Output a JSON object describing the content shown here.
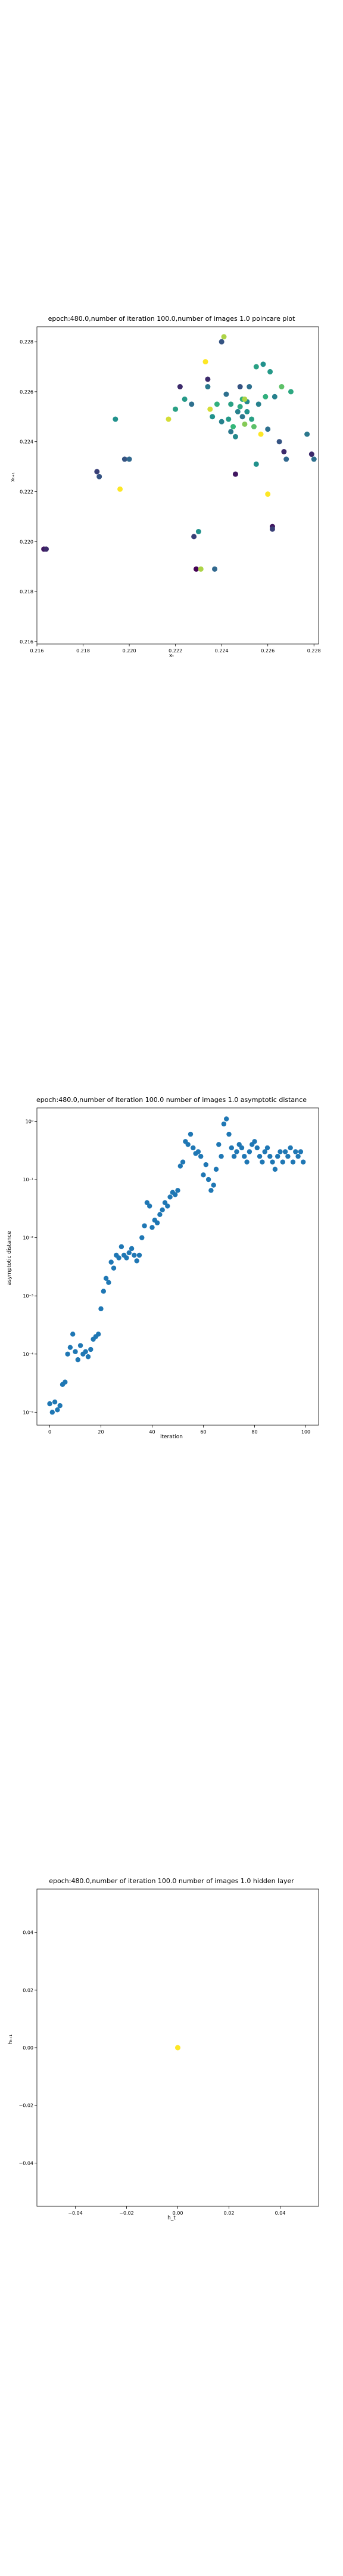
{
  "chart_data": [
    {
      "type": "scatter",
      "title": "epoch:480.0,number of iteration 100.0,number of images 1.0 poincare plot",
      "xlabel": "xₜ",
      "ylabel": "xₜ₊₁",
      "xlim": [
        0.216,
        0.2282
      ],
      "ylim": [
        0.2159,
        0.2286
      ],
      "xticks": [
        0.216,
        0.218,
        0.22,
        0.222,
        0.224,
        0.226,
        0.228
      ],
      "xtick_labels": [
        "0.216",
        "0.218",
        "0.220",
        "0.222",
        "0.224",
        "0.226",
        "0.228"
      ],
      "yticks": [
        0.216,
        0.218,
        0.22,
        0.222,
        0.224,
        0.226,
        0.228
      ],
      "ytick_labels": [
        "0.216",
        "0.218",
        "0.220",
        "0.222",
        "0.224",
        "0.226",
        "0.228"
      ],
      "grid": false,
      "colormap": [
        "#440154",
        "#31688e",
        "#21918c",
        "#35b779",
        "#fde725"
      ],
      "points": [
        [
          0.2163,
          0.2197,
          0.05
        ],
        [
          0.2164,
          0.2197,
          0.1
        ],
        [
          0.2186,
          0.2228,
          0.15
        ],
        [
          0.2187,
          0.2226,
          0.2
        ],
        [
          0.2194,
          0.2249,
          0.5
        ],
        [
          0.2196,
          0.2221,
          1.0
        ],
        [
          0.2198,
          0.2233,
          0.2
        ],
        [
          0.22,
          0.2233,
          0.25
        ],
        [
          0.2217,
          0.2249,
          0.95
        ],
        [
          0.222,
          0.2253,
          0.6
        ],
        [
          0.2222,
          0.2262,
          0.1
        ],
        [
          0.2224,
          0.2257,
          0.55
        ],
        [
          0.2227,
          0.2255,
          0.3
        ],
        [
          0.2228,
          0.2202,
          0.15
        ],
        [
          0.2229,
          0.2189,
          0.0
        ],
        [
          0.223,
          0.2204,
          0.5
        ],
        [
          0.2231,
          0.2189,
          0.9
        ],
        [
          0.2233,
          0.2272,
          1.0
        ],
        [
          0.2234,
          0.2265,
          0.1
        ],
        [
          0.2234,
          0.2262,
          0.35
        ],
        [
          0.2235,
          0.2253,
          0.95
        ],
        [
          0.2236,
          0.225,
          0.5
        ],
        [
          0.2237,
          0.2189,
          0.25
        ],
        [
          0.2238,
          0.2255,
          0.7
        ],
        [
          0.224,
          0.2248,
          0.4
        ],
        [
          0.224,
          0.228,
          0.2
        ],
        [
          0.2241,
          0.2282,
          0.9
        ],
        [
          0.2242,
          0.2259,
          0.3
        ],
        [
          0.2243,
          0.2249,
          0.55
        ],
        [
          0.2244,
          0.2244,
          0.35
        ],
        [
          0.2244,
          0.2255,
          0.6
        ],
        [
          0.2245,
          0.2246,
          0.75
        ],
        [
          0.2246,
          0.2242,
          0.45
        ],
        [
          0.2247,
          0.2252,
          0.4
        ],
        [
          0.2248,
          0.2254,
          0.65
        ],
        [
          0.2249,
          0.225,
          0.35
        ],
        [
          0.2249,
          0.2257,
          0.7
        ],
        [
          0.225,
          0.2247,
          0.85
        ],
        [
          0.2251,
          0.2256,
          0.45
        ],
        [
          0.2251,
          0.2252,
          0.5
        ],
        [
          0.2252,
          0.2262,
          0.3
        ],
        [
          0.2253,
          0.2249,
          0.6
        ],
        [
          0.2254,
          0.2246,
          0.8
        ],
        [
          0.2255,
          0.227,
          0.6
        ],
        [
          0.2256,
          0.2255,
          0.4
        ],
        [
          0.2257,
          0.2243,
          1.0
        ],
        [
          0.2258,
          0.2271,
          0.5
        ],
        [
          0.2259,
          0.2258,
          0.7
        ],
        [
          0.226,
          0.2219,
          1.0
        ],
        [
          0.226,
          0.2245,
          0.3
        ],
        [
          0.2261,
          0.2268,
          0.55
        ],
        [
          0.2262,
          0.2206,
          0.05
        ],
        [
          0.2262,
          0.2205,
          0.15
        ],
        [
          0.2263,
          0.2258,
          0.4
        ],
        [
          0.2265,
          0.224,
          0.2
        ],
        [
          0.2266,
          0.2262,
          0.8
        ],
        [
          0.2267,
          0.2236,
          0.1
        ],
        [
          0.2268,
          0.2233,
          0.25
        ],
        [
          0.227,
          0.226,
          0.65
        ],
        [
          0.2277,
          0.2243,
          0.35
        ],
        [
          0.2279,
          0.2235,
          0.1
        ],
        [
          0.228,
          0.2233,
          0.3
        ],
        [
          0.2246,
          0.2227,
          0.05
        ],
        [
          0.2255,
          0.2231,
          0.5
        ],
        [
          0.225,
          0.2257,
          0.9
        ],
        [
          0.2248,
          0.2262,
          0.2
        ]
      ]
    },
    {
      "type": "scatter",
      "title": "epoch:480.0,number of iteration 100.0  number of images 1.0 asymptotic distance",
      "xlabel": "iteration",
      "ylabel": "asymptotic distance",
      "yscale": "log",
      "xlim": [
        -5,
        105
      ],
      "ylim": [
        6e-06,
        1.7
      ],
      "xticks": [
        0,
        20,
        40,
        60,
        80,
        100
      ],
      "xtick_labels": [
        "0",
        "20",
        "40",
        "60",
        "80",
        "100"
      ],
      "yticks": [
        1e-05,
        0.0001,
        0.001,
        0.01,
        0.1,
        1
      ],
      "ytick_labels": [
        "10⁻⁵",
        "10⁻⁴",
        "10⁻³",
        "10⁻²",
        "10⁻¹",
        "10⁰"
      ],
      "grid": false,
      "color": "#1f77b4",
      "x": [
        0,
        1,
        2,
        3,
        4,
        5,
        6,
        7,
        8,
        9,
        10,
        11,
        12,
        13,
        14,
        15,
        16,
        17,
        18,
        19,
        20,
        21,
        22,
        23,
        24,
        25,
        26,
        27,
        28,
        29,
        30,
        31,
        32,
        33,
        34,
        35,
        36,
        37,
        38,
        39,
        40,
        41,
        42,
        43,
        44,
        45,
        46,
        47,
        48,
        49,
        50,
        51,
        52,
        53,
        54,
        55,
        56,
        57,
        58,
        59,
        60,
        61,
        62,
        63,
        64,
        65,
        66,
        67,
        68,
        69,
        70,
        71,
        72,
        73,
        74,
        75,
        76,
        77,
        78,
        79,
        80,
        81,
        82,
        83,
        84,
        85,
        86,
        87,
        88,
        89,
        90,
        91,
        92,
        93,
        94,
        95,
        96,
        97,
        98,
        99
      ],
      "y": [
        1.4e-05,
        1e-05,
        1.5e-05,
        1.1e-05,
        1.3e-05,
        3e-05,
        3.3e-05,
        0.0001,
        0.00013,
        0.00022,
        0.00011,
        8e-05,
        0.00014,
        0.0001,
        0.00011,
        9e-05,
        0.00012,
        0.00018,
        0.0002,
        0.00022,
        0.0006,
        0.0012,
        0.002,
        0.0017,
        0.0038,
        0.003,
        0.005,
        0.0045,
        0.007,
        0.005,
        0.0045,
        0.0055,
        0.0065,
        0.005,
        0.004,
        0.005,
        0.01,
        0.016,
        0.04,
        0.035,
        0.015,
        0.02,
        0.018,
        0.025,
        0.03,
        0.04,
        0.035,
        0.05,
        0.06,
        0.055,
        0.065,
        0.17,
        0.2,
        0.45,
        0.4,
        0.6,
        0.35,
        0.28,
        0.3,
        0.25,
        0.12,
        0.18,
        0.1,
        0.065,
        0.08,
        0.15,
        0.4,
        0.25,
        0.9,
        1.1,
        0.6,
        0.35,
        0.25,
        0.3,
        0.4,
        0.35,
        0.25,
        0.2,
        0.3,
        0.4,
        0.45,
        0.35,
        0.25,
        0.2,
        0.3,
        0.35,
        0.25,
        0.2,
        0.15,
        0.25,
        0.3,
        0.2,
        0.3,
        0.25,
        0.35,
        0.2,
        0.3,
        0.25,
        0.3,
        0.2
      ]
    },
    {
      "type": "scatter",
      "title": "epoch:480.0,number of iteration 100.0  number of images 1.0 hidden layer",
      "xlabel": "h_t",
      "ylabel": "hₜ₊₁",
      "xlim": [
        -0.055,
        0.055
      ],
      "ylim": [
        -0.055,
        0.055
      ],
      "xticks": [
        -0.04,
        -0.02,
        0.0,
        0.02,
        0.04
      ],
      "xtick_labels": [
        "−0.04",
        "−0.02",
        "0.00",
        "0.02",
        "0.04"
      ],
      "yticks": [
        -0.04,
        -0.02,
        0.0,
        0.02,
        0.04
      ],
      "ytick_labels": [
        "−0.04",
        "−0.02",
        "0.00",
        "0.02",
        "0.04"
      ],
      "grid": false,
      "color": "#fde725",
      "points": [
        [
          0.0,
          0.0
        ]
      ]
    }
  ]
}
